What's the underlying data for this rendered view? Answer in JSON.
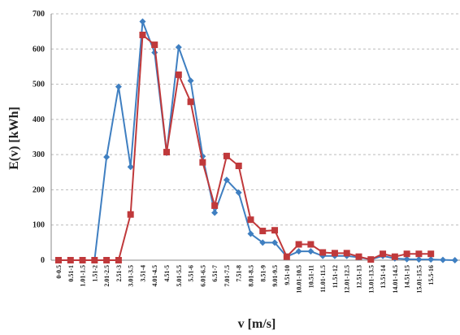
{
  "chart_data": {
    "type": "line",
    "x_label": "v [m/s]",
    "y_label": "E(v) [kWh]",
    "categories": [
      "0-0.5",
      "0.51-1",
      "1.01-1.5",
      "1.51-2",
      "2.01-2.5",
      "2.51-3",
      "3.01-3.5",
      "3.51-4",
      "4.01-4.5",
      "4.51-5",
      "5.01-5.5",
      "5.51-6",
      "6.01-6.5",
      "6.51-7",
      "7.01-7.5",
      "7.51-8",
      "8.01-8.5",
      "8.51-9",
      "9.01-9.5",
      "9.51-10",
      "10.01-10.5",
      "10.51-11",
      "11.01-11.5",
      "11.51-12",
      "12.01-12.5",
      "12.51-13",
      "13.01-13.5",
      "13.51-14",
      "14.01-14.5",
      "14.51-15",
      "15.01-15.5",
      "15.5-16",
      null,
      null
    ],
    "series": [
      {
        "color": "#3f7fc1",
        "marker": "diamond",
        "values": [
          0,
          0,
          0,
          0,
          293,
          493,
          265,
          678,
          590,
          305,
          605,
          510,
          295,
          135,
          228,
          192,
          75,
          50,
          50,
          10,
          25,
          25,
          12,
          12,
          12,
          8,
          2,
          12,
          5,
          3,
          2,
          2,
          1,
          0
        ]
      },
      {
        "color": "#c0393b",
        "marker": "square",
        "values": [
          0,
          0,
          0,
          0,
          0,
          0,
          130,
          640,
          612,
          307,
          527,
          450,
          278,
          155,
          296,
          268,
          115,
          83,
          85,
          10,
          45,
          45,
          22,
          20,
          20,
          10,
          2,
          18,
          10,
          18,
          18,
          18,
          null,
          null
        ]
      }
    ],
    "ylim": [
      0,
      700
    ],
    "yticks": [
      0,
      100,
      200,
      300,
      400,
      500,
      600,
      700
    ],
    "grid": true
  }
}
